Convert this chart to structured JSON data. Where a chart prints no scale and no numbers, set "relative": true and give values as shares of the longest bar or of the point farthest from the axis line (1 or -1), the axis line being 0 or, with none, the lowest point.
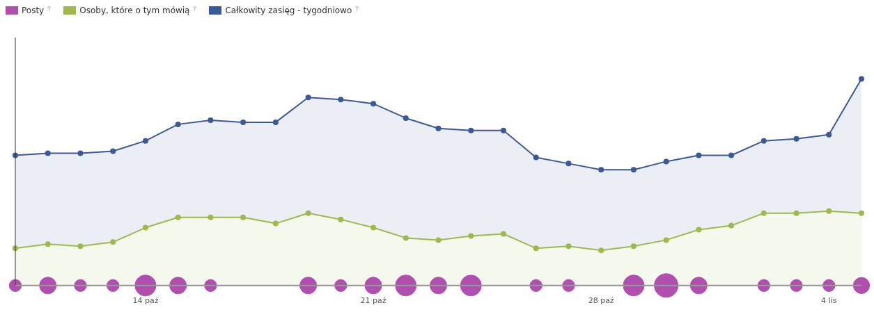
{
  "chart_data": {
    "type": "area",
    "relative": true,
    "legend": "top left",
    "marker": "circle",
    "grid": false,
    "categories": [
      null,
      null,
      null,
      null,
      "14 paź",
      null,
      null,
      null,
      null,
      null,
      null,
      "21 paź",
      null,
      null,
      null,
      null,
      null,
      null,
      "28 paź",
      null,
      null,
      null,
      null,
      null,
      null,
      "4 lis",
      null
    ],
    "series": [
      {
        "name": "Posty",
        "type": "bubble",
        "color": "#b04fb0",
        "values": [
          0,
          0,
          0,
          0,
          0,
          0,
          0,
          null,
          null,
          0,
          0,
          0,
          0,
          0,
          0,
          null,
          0,
          0,
          null,
          0,
          0,
          0,
          null,
          0,
          0,
          0,
          0
        ],
        "sizes": [
          0.26,
          0.5,
          0.26,
          0.26,
          0.78,
          0.5,
          0.26,
          null,
          null,
          0.5,
          0.26,
          0.5,
          0.78,
          0.5,
          0.78,
          null,
          0.26,
          0.26,
          null,
          0.78,
          1,
          0.5,
          null,
          0.26,
          0.26,
          0.26,
          0.47
        ]
      },
      {
        "name": "Osoby, które o tym mówią",
        "color": "#9cba4a",
        "values": [
          0.18,
          0.2,
          0.19,
          0.21,
          0.28,
          0.33,
          0.33,
          0.33,
          0.3,
          0.35,
          0.32,
          0.28,
          0.23,
          0.22,
          0.24,
          0.25,
          0.18,
          0.19,
          0.17,
          0.19,
          0.22,
          0.27,
          0.29,
          0.35,
          0.35,
          0.36,
          0.35
        ]
      },
      {
        "name": "Całkowity zasięg - tygodniowo",
        "color": "#3b5998",
        "values": [
          0.63,
          0.64,
          0.64,
          0.65,
          0.7,
          0.78,
          0.8,
          0.79,
          0.79,
          0.91,
          0.9,
          0.88,
          0.81,
          0.76,
          0.75,
          0.75,
          0.62,
          0.59,
          0.56,
          0.56,
          0.6,
          0.63,
          0.63,
          0.7,
          0.71,
          0.73,
          1
        ]
      }
    ]
  }
}
